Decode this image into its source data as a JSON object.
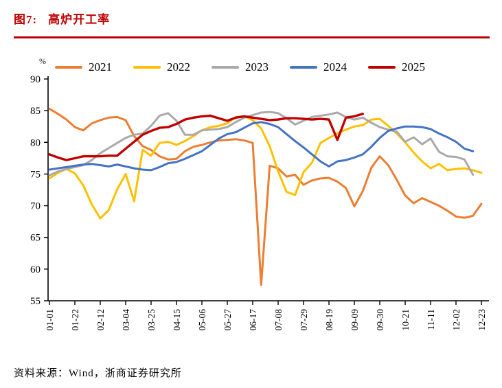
{
  "figure": {
    "label": "图7:",
    "title": "高炉开工率",
    "source": "资料来源：Wind，浙商证券研究所",
    "accent_color": "#c00000"
  },
  "chart_data": {
    "type": "line",
    "title": "高炉开工率",
    "unit": "%",
    "ylim": [
      55,
      90
    ],
    "ytick_step": 5,
    "ytick_labels": [
      "55",
      "60",
      "65",
      "70",
      "75",
      "80",
      "85",
      "90"
    ],
    "grid": false,
    "legend_position": "top",
    "x_points": 52,
    "x_tick_positions": [
      0,
      3,
      6,
      9,
      12,
      15,
      18,
      21,
      24,
      27,
      30,
      33,
      36,
      39,
      42,
      45,
      48,
      51
    ],
    "x_tick_labels": [
      "01-01",
      "01-22",
      "02-12",
      "03-04",
      "03-25",
      "04-15",
      "05-06",
      "05-27",
      "06-17",
      "07-08",
      "07-29",
      "08-19",
      "09-09",
      "09-30",
      "10-21",
      "11-11",
      "12-02",
      "12-23"
    ],
    "series": [
      {
        "name": "2021",
        "color": "#ED7D31",
        "values": [
          85.3,
          84.5,
          83.6,
          82.4,
          81.9,
          83.0,
          83.5,
          83.9,
          84.0,
          83.5,
          81.0,
          79.4,
          78.8,
          77.8,
          77.3,
          77.4,
          78.6,
          79.3,
          79.6,
          80.0,
          80.3,
          80.4,
          80.5,
          80.3,
          79.9,
          57.5,
          76.3,
          75.9,
          74.6,
          74.9,
          73.3,
          74.0,
          74.3,
          74.4,
          73.8,
          72.8,
          69.9,
          72.3,
          76.0,
          77.8,
          76.4,
          74.1,
          71.6,
          70.4,
          71.2,
          70.6,
          70.0,
          69.2,
          68.3,
          68.1,
          68.4,
          70.3
        ]
      },
      {
        "name": "2022",
        "color": "#FFC000",
        "values": [
          74.3,
          75.2,
          75.8,
          75.1,
          73.2,
          70.2,
          68.0,
          69.3,
          72.6,
          75.0,
          70.7,
          78.8,
          77.9,
          79.9,
          80.1,
          79.6,
          80.2,
          81.0,
          81.9,
          82.4,
          82.6,
          83.0,
          84.0,
          84.1,
          83.5,
          82.2,
          79.4,
          75.4,
          72.2,
          71.7,
          75.3,
          76.8,
          79.9,
          80.7,
          81.4,
          82.0,
          82.5,
          82.7,
          83.6,
          83.7,
          82.6,
          81.4,
          80.0,
          78.4,
          77.0,
          75.9,
          76.6,
          75.6,
          75.8,
          75.9,
          75.6,
          75.2
        ]
      },
      {
        "name": "2023",
        "color": "#A9A9A9",
        "values": [
          74.8,
          75.4,
          75.8,
          76.1,
          76.4,
          77.2,
          78.3,
          79.1,
          79.9,
          80.7,
          81.2,
          81.4,
          82.6,
          84.2,
          84.6,
          83.4,
          81.2,
          81.2,
          81.9,
          82.0,
          82.1,
          82.4,
          83.2,
          83.9,
          84.3,
          84.7,
          84.8,
          84.6,
          83.8,
          82.8,
          83.4,
          84.0,
          84.2,
          84.4,
          84.7,
          84.0,
          83.6,
          83.9,
          83.1,
          82.4,
          82.0,
          81.7,
          80.1,
          80.8,
          79.7,
          80.6,
          78.5,
          77.8,
          77.7,
          77.3,
          74.9
        ]
      },
      {
        "name": "2024",
        "color": "#4472C4",
        "values": [
          75.7,
          75.9,
          76.1,
          76.3,
          76.5,
          76.6,
          76.4,
          76.2,
          76.5,
          76.2,
          75.9,
          75.7,
          75.6,
          76.1,
          76.7,
          76.9,
          77.4,
          78.0,
          78.6,
          79.6,
          80.6,
          81.3,
          81.6,
          82.3,
          83.0,
          83.2,
          82.9,
          82.4,
          81.3,
          80.2,
          79.2,
          78.1,
          77.0,
          76.2,
          77.0,
          77.2,
          77.6,
          78.1,
          79.3,
          80.7,
          81.8,
          82.2,
          82.5,
          82.5,
          82.4,
          82.1,
          81.4,
          80.8,
          80.1,
          79.0,
          78.6
        ]
      },
      {
        "name": "2025",
        "color": "#C00000",
        "values": [
          78.1,
          77.6,
          77.2,
          77.5,
          77.8,
          77.8,
          77.8,
          77.9,
          77.9,
          79.0,
          80.1,
          81.2,
          81.8,
          82.3,
          82.4,
          82.9,
          83.6,
          83.9,
          84.1,
          84.2,
          83.8,
          83.4,
          83.9,
          84.1,
          83.9,
          83.7,
          83.5,
          83.6,
          83.8,
          83.8,
          83.7,
          83.6,
          83.7,
          83.6,
          80.4,
          83.9,
          84.1,
          84.5
        ]
      }
    ]
  }
}
